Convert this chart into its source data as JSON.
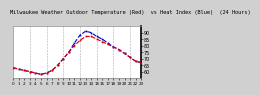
{
  "title": "Milwaukee Weather Outdoor Temperature (Red)  vs Heat Index (Blue)  (24 Hours)",
  "title_fontsize": 3.8,
  "background_color": "#d0d0d0",
  "plot_bg_color": "#ffffff",
  "xlim": [
    0,
    23
  ],
  "ylim": [
    55,
    95
  ],
  "yticks": [
    60,
    65,
    70,
    75,
    80,
    85,
    90
  ],
  "ytick_labels": [
    "60",
    "65",
    "70",
    "75",
    "80",
    "85",
    "90"
  ],
  "ytick_fontsize": 3.5,
  "xtick_fontsize": 3.0,
  "grid_color": "#999999",
  "grid_alpha": 0.8,
  "hours": [
    0,
    1,
    2,
    3,
    4,
    5,
    6,
    7,
    8,
    9,
    10,
    11,
    12,
    13,
    14,
    15,
    16,
    17,
    18,
    19,
    20,
    21,
    22,
    23
  ],
  "temp": [
    63,
    62,
    61,
    60,
    59,
    58,
    59,
    61,
    65,
    70,
    75,
    80,
    84,
    87,
    87,
    85,
    83,
    81,
    79,
    77,
    74,
    71,
    68,
    67
  ],
  "heat_index": [
    63,
    62,
    61,
    60,
    59,
    58,
    59,
    61,
    65,
    70,
    75,
    82,
    88,
    91,
    90,
    87,
    85,
    82,
    79,
    77,
    74,
    71,
    68,
    67
  ],
  "temp_color": "#dd0000",
  "heat_color": "#0000cc",
  "line_width": 0.8,
  "marker": "s",
  "marker_size": 1.2,
  "vgrid_positions": [
    3,
    6,
    9,
    12,
    15,
    18,
    21
  ]
}
